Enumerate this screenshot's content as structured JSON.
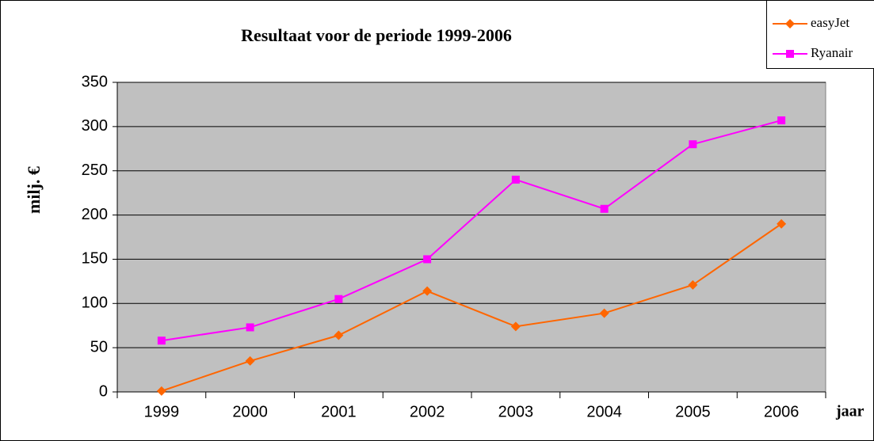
{
  "chart_data": {
    "type": "line",
    "title": "Resultaat voor de periode 1999-2006",
    "y_label": "milj. €",
    "x_label": "jaar",
    "categories": [
      "1999",
      "2000",
      "2001",
      "2002",
      "2003",
      "2004",
      "2005",
      "2006"
    ],
    "series": [
      {
        "name": "easyJet",
        "color": "#ff6600",
        "marker": "diamond",
        "values": [
          1,
          35,
          64,
          114,
          74,
          89,
          121,
          190
        ]
      },
      {
        "name": "Ryanair",
        "color": "#ff00ff",
        "marker": "square",
        "values": [
          58,
          73,
          105,
          150,
          240,
          207,
          280,
          307
        ]
      }
    ],
    "ylim": [
      0,
      350
    ],
    "yticks": [
      0,
      50,
      100,
      150,
      200,
      250,
      300,
      350
    ],
    "grid": true,
    "legend": "top-right",
    "background": "#c0c0c0"
  }
}
